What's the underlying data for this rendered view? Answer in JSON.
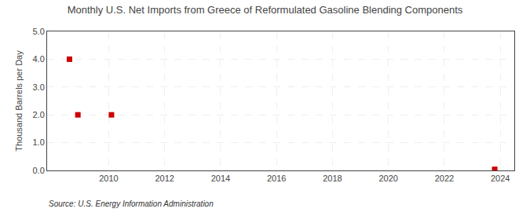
{
  "chart_data": {
    "type": "scatter",
    "title": "Monthly U.S. Net Imports from Greece of Reformulated Gasoline Blending Components",
    "ylabel": "Thousand Barrels per Day",
    "annotation": "Source: U.S. Energy Information Administration",
    "x": [
      2008.6,
      2008.9,
      2010.1,
      2023.8
    ],
    "values": [
      4.0,
      2.0,
      2.0,
      0.04
    ],
    "color": "#cc0000",
    "marker": "square",
    "xlim": [
      2007.8,
      2024.5
    ],
    "xticks": [
      2010,
      2012,
      2014,
      2016,
      2018,
      2020,
      2022,
      2024
    ],
    "ylim": [
      0.0,
      5.0
    ],
    "yticks": [
      {
        "value": 0.0,
        "label": "0.0"
      },
      {
        "value": 1.0,
        "label": "1.0"
      },
      {
        "value": 2.0,
        "label": "2.0"
      },
      {
        "value": 3.0,
        "label": "3.0"
      },
      {
        "value": 4.0,
        "label": "4.0"
      },
      {
        "value": 5.0,
        "label": "5.0"
      }
    ],
    "grid": true
  }
}
